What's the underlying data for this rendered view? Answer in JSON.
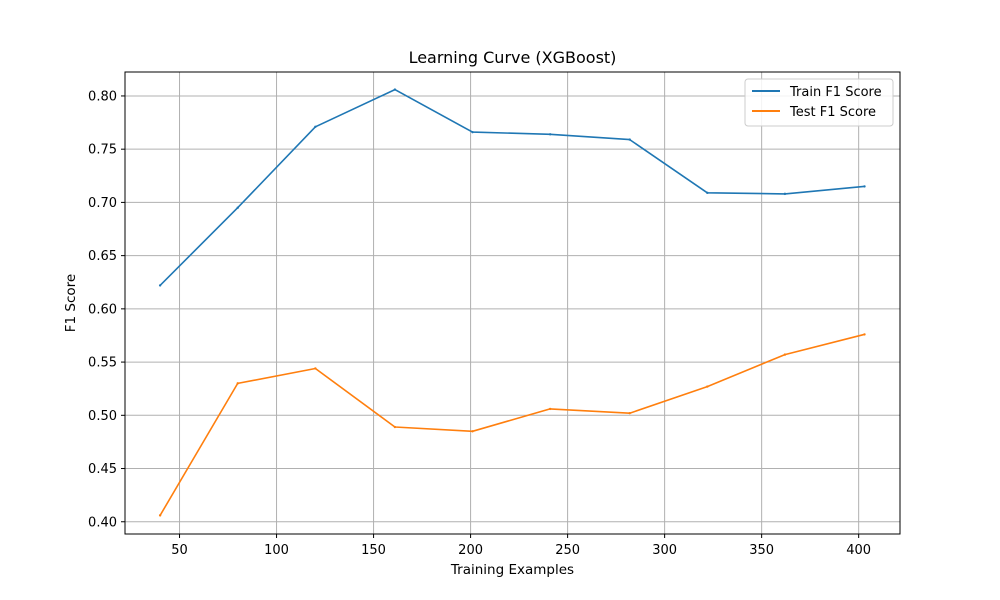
{
  "chart_data": {
    "type": "line",
    "title": "Learning Curve (XGBoost)",
    "xlabel": "Training Examples",
    "ylabel": "F1 Score",
    "xlim": [
      21.9,
      421.3
    ],
    "ylim": [
      0.3885,
      0.8225
    ],
    "xticks": [
      50,
      100,
      150,
      200,
      250,
      300,
      350,
      400
    ],
    "xtick_labels": [
      "50",
      "100",
      "150",
      "200",
      "250",
      "300",
      "350",
      "400"
    ],
    "yticks": [
      0.4,
      0.45,
      0.5,
      0.55,
      0.6,
      0.65,
      0.7,
      0.75,
      0.8
    ],
    "ytick_labels": [
      "0.40",
      "0.45",
      "0.50",
      "0.55",
      "0.60",
      "0.65",
      "0.70",
      "0.75",
      "0.80"
    ],
    "grid": true,
    "legend_position": "top-right",
    "x": [
      40,
      80,
      120,
      161,
      201,
      241,
      282,
      322,
      362,
      403
    ],
    "series": [
      {
        "name": "Train F1 Score",
        "color": "#1f77b4",
        "values": [
          0.622,
          0.695,
          0.771,
          0.806,
          0.766,
          0.764,
          0.759,
          0.709,
          0.708,
          0.715
        ]
      },
      {
        "name": "Test F1 Score",
        "color": "#ff7f0e",
        "values": [
          0.406,
          0.53,
          0.544,
          0.489,
          0.485,
          0.506,
          0.502,
          0.527,
          0.557,
          0.576
        ]
      }
    ]
  }
}
